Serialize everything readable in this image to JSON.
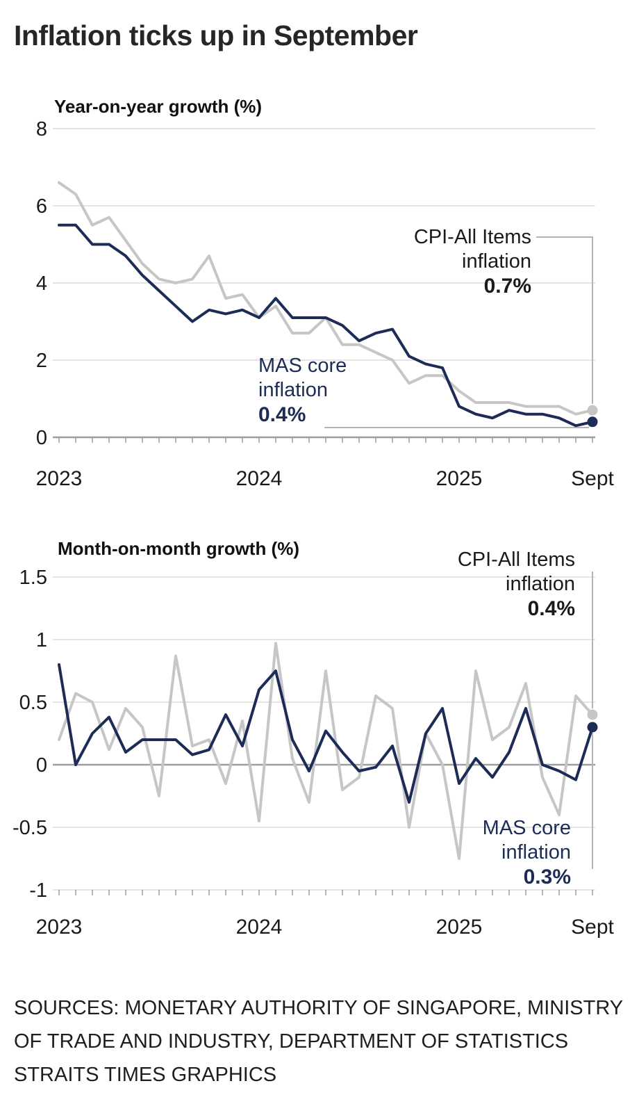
{
  "page": {
    "title": "Inflation ticks up in September",
    "sources_lines": [
      "SOURCES: MONETARY AUTHORITY OF SINGAPORE, MINISTRY",
      "OF TRADE AND INDUSTRY, DEPARTMENT OF STATISTICS",
      "STRAITS TIMES GRAPHICS"
    ]
  },
  "colors": {
    "cpi_line": "#c6c6c6",
    "core_line": "#1c2c56",
    "grid": "#dcdcdc",
    "axis": "#9e9e9e",
    "connector": "#b4b4b4",
    "text": "#1a1a1a"
  },
  "chart_data": [
    {
      "type": "line",
      "title": "Year-on-year growth (%)",
      "x_unit": "month",
      "x_start": "Jan 2023",
      "x_end": "Sep 2025",
      "x_tick_labels": [
        "2023",
        "2024",
        "2025",
        "Sept"
      ],
      "x_tick_positions": [
        0,
        12,
        24,
        32
      ],
      "ylim": [
        0,
        8
      ],
      "yticks": [
        0,
        2,
        4,
        6,
        8
      ],
      "grid": true,
      "legend_position": "annotated-endpoints",
      "series": [
        {
          "name": "CPI-All Items inflation",
          "slug": "cpi-all-items",
          "color_key": "cpi_line",
          "values": [
            6.6,
            6.3,
            5.5,
            5.7,
            5.1,
            4.5,
            4.1,
            4.0,
            4.1,
            4.7,
            3.6,
            3.7,
            3.1,
            3.4,
            2.7,
            2.7,
            3.1,
            2.4,
            2.4,
            2.2,
            2.0,
            1.4,
            1.6,
            1.6,
            1.2,
            0.9,
            0.9,
            0.9,
            0.8,
            0.8,
            0.8,
            0.6,
            0.7
          ]
        },
        {
          "name": "MAS core inflation",
          "slug": "mas-core",
          "color_key": "core_line",
          "values": [
            5.5,
            5.5,
            5.0,
            5.0,
            4.7,
            4.2,
            3.8,
            3.4,
            3.0,
            3.3,
            3.2,
            3.3,
            3.1,
            3.6,
            3.1,
            3.1,
            3.1,
            2.9,
            2.5,
            2.7,
            2.8,
            2.1,
            1.9,
            1.8,
            0.8,
            0.6,
            0.5,
            0.7,
            0.6,
            0.6,
            0.5,
            0.3,
            0.4
          ]
        }
      ],
      "annotations": [
        {
          "series": "CPI-All Items inflation",
          "label_lines": [
            "CPI-All Items",
            "inflation"
          ],
          "value_label": "0.7%"
        },
        {
          "series": "MAS core inflation",
          "label_lines": [
            "MAS core",
            "inflation"
          ],
          "value_label": "0.4%"
        }
      ]
    },
    {
      "type": "line",
      "title": "Month-on-month growth (%)",
      "x_unit": "month",
      "x_start": "Jan 2023",
      "x_end": "Sep 2025",
      "x_tick_labels": [
        "2023",
        "2024",
        "2025",
        "Sept"
      ],
      "x_tick_positions": [
        0,
        12,
        24,
        32
      ],
      "ylim": [
        -1,
        1.5
      ],
      "yticks": [
        -1,
        -0.5,
        0,
        0.5,
        1,
        1.5
      ],
      "grid": true,
      "legend_position": "annotated-endpoints",
      "series": [
        {
          "name": "CPI-All Items inflation",
          "slug": "cpi-all-items",
          "color_key": "cpi_line",
          "values": [
            0.2,
            0.57,
            0.5,
            0.12,
            0.45,
            0.3,
            -0.25,
            0.87,
            0.15,
            0.2,
            -0.15,
            0.35,
            -0.45,
            0.97,
            0.05,
            -0.3,
            0.75,
            -0.2,
            -0.1,
            0.55,
            0.45,
            -0.5,
            0.25,
            0.0,
            -0.75,
            0.75,
            0.2,
            0.3,
            0.65,
            -0.1,
            -0.4,
            0.55,
            0.4
          ]
        },
        {
          "name": "MAS core inflation",
          "slug": "mas-core",
          "color_key": "core_line",
          "values": [
            0.8,
            0.0,
            0.25,
            0.38,
            0.1,
            0.2,
            0.2,
            0.2,
            0.08,
            0.12,
            0.4,
            0.15,
            0.6,
            0.75,
            0.2,
            -0.05,
            0.27,
            0.1,
            -0.05,
            -0.02,
            0.15,
            -0.3,
            0.25,
            0.45,
            -0.15,
            0.05,
            -0.1,
            0.1,
            0.45,
            0.0,
            -0.05,
            -0.12,
            0.3
          ]
        }
      ],
      "annotations": [
        {
          "series": "CPI-All Items inflation",
          "label_lines": [
            "CPI-All Items",
            "inflation"
          ],
          "value_label": "0.4%"
        },
        {
          "series": "MAS core inflation",
          "label_lines": [
            "MAS core",
            "inflation"
          ],
          "value_label": "0.3%"
        }
      ]
    }
  ]
}
